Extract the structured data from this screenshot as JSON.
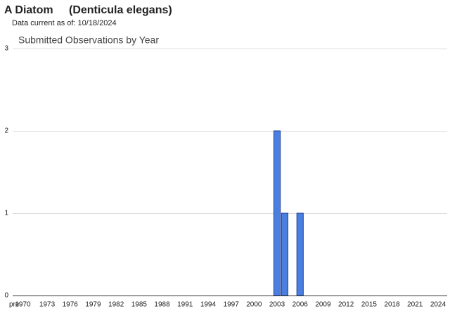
{
  "chart_data": {
    "type": "bar",
    "title": "A Diatom",
    "scientific_name": "(Denticula elegans)",
    "data_note": "Data current as of: 10/18/2024",
    "chart_title": "Submitted Observations by Year",
    "categories": [
      "pre",
      "1970",
      null,
      null,
      "1973",
      null,
      null,
      "1976",
      null,
      null,
      "1979",
      null,
      null,
      "1982",
      null,
      null,
      "1985",
      null,
      null,
      "1988",
      null,
      null,
      "1991",
      null,
      null,
      "1994",
      null,
      null,
      "1997",
      null,
      null,
      "2000",
      null,
      null,
      "2003",
      null,
      null,
      "2006",
      null,
      null,
      "2009",
      null,
      null,
      "2012",
      null,
      null,
      "2015",
      null,
      null,
      "2018",
      null,
      null,
      "2021",
      null,
      null,
      "2024"
    ],
    "values": [
      0,
      0,
      0,
      0,
      0,
      0,
      0,
      0,
      0,
      0,
      0,
      0,
      0,
      0,
      0,
      0,
      0,
      0,
      0,
      0,
      0,
      0,
      0,
      0,
      0,
      0,
      0,
      0,
      0,
      0,
      0,
      0,
      0,
      0,
      2,
      1,
      0,
      1,
      0,
      0,
      0,
      0,
      0,
      0,
      0,
      0,
      0,
      0,
      0,
      0,
      0,
      0,
      0,
      0,
      0,
      0
    ],
    "color": "#4a7fe0",
    "ylim": [
      0,
      3
    ],
    "yticks": [
      0,
      1,
      2,
      3
    ],
    "grid": true
  }
}
